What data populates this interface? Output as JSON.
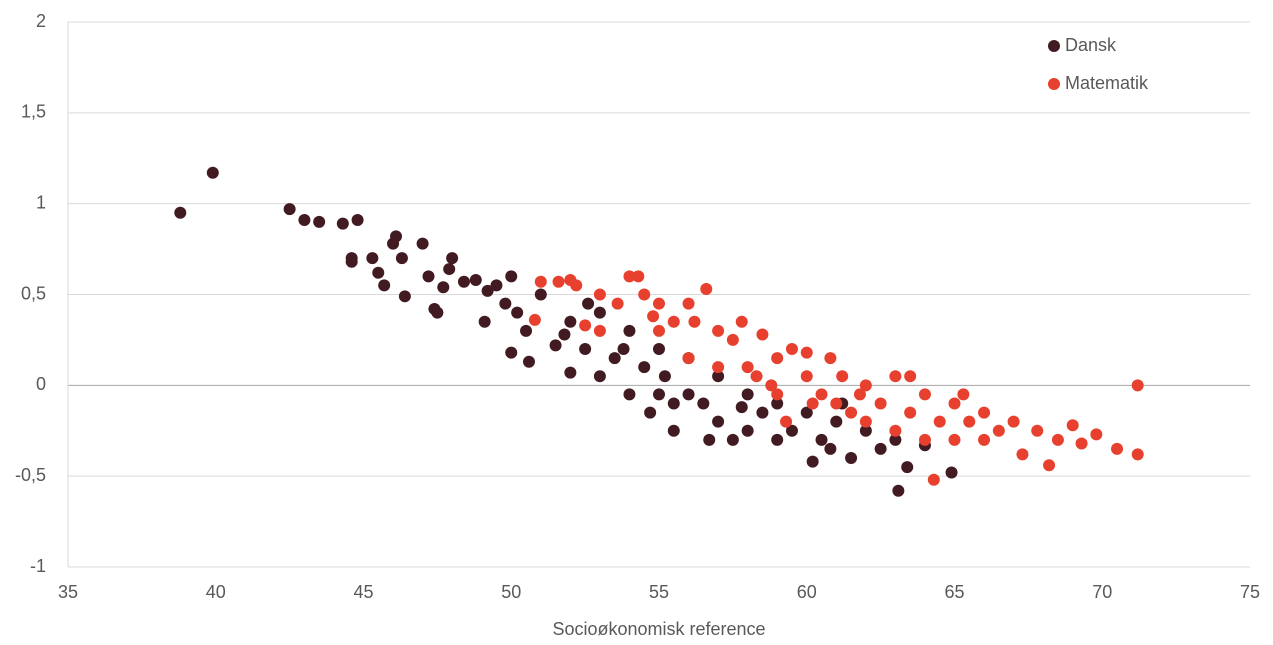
{
  "chart_data": {
    "type": "scatter",
    "xlabel": "Socioøkonomisk reference",
    "xlim": [
      35,
      75
    ],
    "xticks": [
      35,
      40,
      45,
      50,
      55,
      60,
      65,
      70,
      75
    ],
    "ylim": [
      -1,
      2
    ],
    "yticks": [
      -1,
      {
        "value": -0.5,
        "label": "-0,5"
      },
      0,
      {
        "value": 0.5,
        "label": "0,5"
      },
      1,
      {
        "value": 1.5,
        "label": "1,5"
      },
      2
    ],
    "grid": true,
    "legend": "upper right",
    "series": [
      {
        "name": "Dansk",
        "color": "#421b22",
        "x": [
          38.8,
          39.9,
          42.5,
          43,
          43.5,
          44.3,
          44.8,
          44.6,
          44.6,
          45.3,
          45.5,
          45.7,
          46,
          46.1,
          46.3,
          46.4,
          47,
          47.2,
          47.4,
          47.5,
          47.7,
          47.9,
          48,
          48.4,
          48.8,
          49.2,
          49.1,
          49.5,
          49.8,
          50,
          50.2,
          50,
          50.6,
          50.5,
          51,
          51.5,
          52,
          52,
          52.5,
          53,
          53,
          53.5,
          54,
          54,
          54.5,
          54.7,
          55,
          55,
          55.5,
          55.5,
          56,
          56,
          56.5,
          57,
          57,
          57.5,
          58,
          58,
          58.5,
          59,
          59,
          59.5,
          60,
          60.2,
          60.5,
          61,
          61.5,
          62,
          62.5,
          63,
          63.1,
          63.4,
          64,
          64.9,
          56.7,
          52.6,
          51.8,
          53.8,
          55.2,
          57.8,
          60.8,
          61.2
        ],
        "y": [
          0.95,
          1.17,
          0.97,
          0.91,
          0.9,
          0.89,
          0.91,
          0.7,
          0.68,
          0.7,
          0.62,
          0.55,
          0.78,
          0.82,
          0.7,
          0.49,
          0.78,
          0.6,
          0.42,
          0.4,
          0.54,
          0.64,
          0.7,
          0.57,
          0.58,
          0.52,
          0.35,
          0.55,
          0.45,
          0.6,
          0.4,
          0.18,
          0.13,
          0.3,
          0.5,
          0.22,
          0.07,
          0.35,
          0.2,
          0.4,
          0.05,
          0.15,
          0.3,
          -0.05,
          0.1,
          -0.15,
          0.2,
          -0.05,
          -0.1,
          -0.25,
          0.15,
          -0.05,
          -0.1,
          0.05,
          -0.2,
          -0.3,
          -0.05,
          -0.25,
          -0.15,
          -0.3,
          -0.1,
          -0.25,
          -0.15,
          -0.42,
          -0.3,
          -0.2,
          -0.4,
          -0.25,
          -0.35,
          -0.3,
          -0.58,
          -0.45,
          -0.33,
          -0.48,
          -0.3,
          0.45,
          0.28,
          0.2,
          0.05,
          -0.12,
          -0.35,
          -0.1
        ]
      },
      {
        "name": "Matematik",
        "color": "#e8402f",
        "x": [
          50.8,
          51,
          51.6,
          52,
          52.2,
          52.5,
          53,
          53,
          53.6,
          54,
          54.3,
          54.5,
          55,
          55,
          55.5,
          56,
          56,
          56.6,
          57,
          57,
          57.5,
          57.8,
          58,
          58.3,
          58.5,
          59,
          59,
          59.5,
          59.3,
          60,
          60,
          60.5,
          60.8,
          61,
          61.2,
          61.5,
          62,
          62,
          62.5,
          63,
          63,
          63.5,
          64,
          64,
          64.3,
          64.5,
          65,
          65,
          65.5,
          66,
          66,
          66.5,
          67,
          67.3,
          67.8,
          68.2,
          68.5,
          69,
          69.3,
          69.8,
          70.5,
          71.2,
          71.2,
          63.5,
          58.8,
          56.2,
          61.8,
          65.3,
          54.8,
          60.2
        ],
        "y": [
          0.36,
          0.57,
          0.57,
          0.58,
          0.55,
          0.33,
          0.3,
          0.5,
          0.45,
          0.6,
          0.6,
          0.5,
          0.45,
          0.3,
          0.35,
          0.45,
          0.15,
          0.53,
          0.3,
          0.1,
          0.25,
          0.35,
          0.1,
          0.05,
          0.28,
          0.15,
          -0.05,
          0.2,
          -0.2,
          0.05,
          0.18,
          -0.05,
          0.15,
          -0.1,
          0.05,
          -0.15,
          0.0,
          -0.2,
          -0.1,
          0.05,
          -0.25,
          -0.15,
          -0.05,
          -0.3,
          -0.52,
          -0.2,
          -0.1,
          -0.3,
          -0.2,
          -0.15,
          -0.3,
          -0.25,
          -0.2,
          -0.38,
          -0.25,
          -0.44,
          -0.3,
          -0.22,
          -0.32,
          -0.27,
          -0.35,
          0.0,
          -0.38,
          0.05,
          0.0,
          0.35,
          -0.05,
          -0.05,
          0.38,
          -0.1
        ]
      }
    ]
  }
}
